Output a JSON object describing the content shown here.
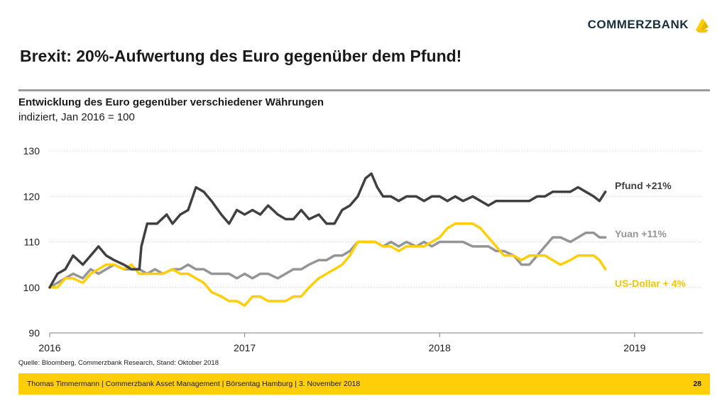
{
  "brand": {
    "name": "COMMERZBANK",
    "logo_color": "#fecf09"
  },
  "slide": {
    "title": "Brexit: 20%-Aufwertung des Euro gegenüber dem Pfund!",
    "subtitle": "Entwicklung des Euro gegenüber verschiedener Währungen",
    "unit_note": "indiziert, Jan 2016 = 100",
    "source": "Quelle: Bloomberg, Commerzbank Research, Stand: Oktober 2018",
    "footer": "Thomas Timmermann | Commerzbank Asset Management | Börsentag Hamburg | 3. November 2018",
    "page_number": "28"
  },
  "chart_data": {
    "type": "line",
    "xlim": [
      2016.0,
      2019.35
    ],
    "ylim": [
      90,
      130
    ],
    "x_ticks": [
      "2016",
      "2017",
      "2018",
      "2019"
    ],
    "y_ticks": [
      "90",
      "100",
      "110",
      "120",
      "130"
    ],
    "grid": "horizontal",
    "legend": "inline labels right of line ends",
    "series": [
      {
        "name": "Pfund +21%",
        "color": "#404040",
        "points": [
          [
            2016.0,
            100
          ],
          [
            2016.04,
            103
          ],
          [
            2016.08,
            104
          ],
          [
            2016.12,
            107
          ],
          [
            2016.17,
            105
          ],
          [
            2016.21,
            107
          ],
          [
            2016.25,
            109
          ],
          [
            2016.29,
            107
          ],
          [
            2016.33,
            106
          ],
          [
            2016.38,
            105
          ],
          [
            2016.42,
            104
          ],
          [
            2016.46,
            104
          ],
          [
            2016.47,
            109
          ],
          [
            2016.5,
            114
          ],
          [
            2016.55,
            114
          ],
          [
            2016.6,
            116
          ],
          [
            2016.63,
            114
          ],
          [
            2016.67,
            116
          ],
          [
            2016.71,
            117
          ],
          [
            2016.75,
            122
          ],
          [
            2016.79,
            121
          ],
          [
            2016.83,
            119
          ],
          [
            2016.88,
            116
          ],
          [
            2016.92,
            114
          ],
          [
            2016.96,
            117
          ],
          [
            2017.0,
            116
          ],
          [
            2017.04,
            117
          ],
          [
            2017.08,
            116
          ],
          [
            2017.12,
            118
          ],
          [
            2017.17,
            116
          ],
          [
            2017.21,
            115
          ],
          [
            2017.25,
            115
          ],
          [
            2017.29,
            117
          ],
          [
            2017.33,
            115
          ],
          [
            2017.38,
            116
          ],
          [
            2017.42,
            114
          ],
          [
            2017.46,
            114
          ],
          [
            2017.5,
            117
          ],
          [
            2017.54,
            118
          ],
          [
            2017.58,
            120
          ],
          [
            2017.62,
            124
          ],
          [
            2017.65,
            125
          ],
          [
            2017.68,
            122
          ],
          [
            2017.71,
            120
          ],
          [
            2017.75,
            120
          ],
          [
            2017.79,
            119
          ],
          [
            2017.83,
            120
          ],
          [
            2017.88,
            120
          ],
          [
            2017.92,
            119
          ],
          [
            2017.96,
            120
          ],
          [
            2018.0,
            120
          ],
          [
            2018.04,
            119
          ],
          [
            2018.08,
            120
          ],
          [
            2018.12,
            119
          ],
          [
            2018.17,
            120
          ],
          [
            2018.21,
            119
          ],
          [
            2018.25,
            118
          ],
          [
            2018.29,
            119
          ],
          [
            2018.33,
            119
          ],
          [
            2018.38,
            119
          ],
          [
            2018.42,
            119
          ],
          [
            2018.46,
            119
          ],
          [
            2018.5,
            120
          ],
          [
            2018.54,
            120
          ],
          [
            2018.58,
            121
          ],
          [
            2018.62,
            121
          ],
          [
            2018.67,
            121
          ],
          [
            2018.71,
            122
          ],
          [
            2018.75,
            121
          ],
          [
            2018.79,
            120
          ],
          [
            2018.82,
            119
          ],
          [
            2018.85,
            121
          ]
        ]
      },
      {
        "name": "Yuan +11%",
        "color": "#959595",
        "points": [
          [
            2016.0,
            100
          ],
          [
            2016.04,
            101
          ],
          [
            2016.08,
            102
          ],
          [
            2016.12,
            103
          ],
          [
            2016.17,
            102
          ],
          [
            2016.21,
            104
          ],
          [
            2016.25,
            103
          ],
          [
            2016.29,
            104
          ],
          [
            2016.33,
            105
          ],
          [
            2016.38,
            104
          ],
          [
            2016.42,
            104
          ],
          [
            2016.46,
            104
          ],
          [
            2016.5,
            103
          ],
          [
            2016.54,
            104
          ],
          [
            2016.58,
            103
          ],
          [
            2016.63,
            104
          ],
          [
            2016.67,
            104
          ],
          [
            2016.71,
            105
          ],
          [
            2016.75,
            104
          ],
          [
            2016.79,
            104
          ],
          [
            2016.83,
            103
          ],
          [
            2016.88,
            103
          ],
          [
            2016.92,
            103
          ],
          [
            2016.96,
            102
          ],
          [
            2017.0,
            103
          ],
          [
            2017.04,
            102
          ],
          [
            2017.08,
            103
          ],
          [
            2017.12,
            103
          ],
          [
            2017.17,
            102
          ],
          [
            2017.21,
            103
          ],
          [
            2017.25,
            104
          ],
          [
            2017.29,
            104
          ],
          [
            2017.33,
            105
          ],
          [
            2017.38,
            106
          ],
          [
            2017.42,
            106
          ],
          [
            2017.46,
            107
          ],
          [
            2017.5,
            107
          ],
          [
            2017.54,
            108
          ],
          [
            2017.58,
            110
          ],
          [
            2017.62,
            110
          ],
          [
            2017.67,
            110
          ],
          [
            2017.71,
            109
          ],
          [
            2017.75,
            110
          ],
          [
            2017.79,
            109
          ],
          [
            2017.83,
            110
          ],
          [
            2017.88,
            109
          ],
          [
            2017.92,
            110
          ],
          [
            2017.96,
            109
          ],
          [
            2018.0,
            110
          ],
          [
            2018.04,
            110
          ],
          [
            2018.08,
            110
          ],
          [
            2018.12,
            110
          ],
          [
            2018.17,
            109
          ],
          [
            2018.21,
            109
          ],
          [
            2018.25,
            109
          ],
          [
            2018.29,
            108
          ],
          [
            2018.33,
            108
          ],
          [
            2018.38,
            107
          ],
          [
            2018.42,
            105
          ],
          [
            2018.46,
            105
          ],
          [
            2018.5,
            107
          ],
          [
            2018.54,
            109
          ],
          [
            2018.58,
            111
          ],
          [
            2018.62,
            111
          ],
          [
            2018.67,
            110
          ],
          [
            2018.71,
            111
          ],
          [
            2018.75,
            112
          ],
          [
            2018.79,
            112
          ],
          [
            2018.82,
            111
          ],
          [
            2018.85,
            111
          ]
        ]
      },
      {
        "name": "US-Dollar + 4%",
        "color": "#fecf09",
        "points": [
          [
            2016.0,
            100
          ],
          [
            2016.04,
            100
          ],
          [
            2016.08,
            102
          ],
          [
            2016.12,
            102
          ],
          [
            2016.17,
            101
          ],
          [
            2016.21,
            103
          ],
          [
            2016.25,
            104
          ],
          [
            2016.29,
            105
          ],
          [
            2016.33,
            105
          ],
          [
            2016.38,
            104
          ],
          [
            2016.42,
            105
          ],
          [
            2016.46,
            103
          ],
          [
            2016.5,
            103
          ],
          [
            2016.54,
            103
          ],
          [
            2016.58,
            103
          ],
          [
            2016.63,
            104
          ],
          [
            2016.67,
            103
          ],
          [
            2016.71,
            103
          ],
          [
            2016.75,
            102
          ],
          [
            2016.79,
            101
          ],
          [
            2016.83,
            99
          ],
          [
            2016.88,
            98
          ],
          [
            2016.92,
            97
          ],
          [
            2016.96,
            97
          ],
          [
            2017.0,
            96
          ],
          [
            2017.04,
            98
          ],
          [
            2017.08,
            98
          ],
          [
            2017.12,
            97
          ],
          [
            2017.17,
            97
          ],
          [
            2017.21,
            97
          ],
          [
            2017.25,
            98
          ],
          [
            2017.29,
            98
          ],
          [
            2017.33,
            100
          ],
          [
            2017.38,
            102
          ],
          [
            2017.42,
            103
          ],
          [
            2017.46,
            104
          ],
          [
            2017.5,
            105
          ],
          [
            2017.54,
            107
          ],
          [
            2017.58,
            110
          ],
          [
            2017.62,
            110
          ],
          [
            2017.67,
            110
          ],
          [
            2017.71,
            109
          ],
          [
            2017.75,
            109
          ],
          [
            2017.79,
            108
          ],
          [
            2017.83,
            109
          ],
          [
            2017.88,
            109
          ],
          [
            2017.92,
            109
          ],
          [
            2017.96,
            110
          ],
          [
            2018.0,
            111
          ],
          [
            2018.04,
            113
          ],
          [
            2018.08,
            114
          ],
          [
            2018.12,
            114
          ],
          [
            2018.17,
            114
          ],
          [
            2018.21,
            113
          ],
          [
            2018.25,
            111
          ],
          [
            2018.29,
            109
          ],
          [
            2018.33,
            107
          ],
          [
            2018.38,
            107
          ],
          [
            2018.42,
            106
          ],
          [
            2018.46,
            107
          ],
          [
            2018.5,
            107
          ],
          [
            2018.54,
            107
          ],
          [
            2018.58,
            106
          ],
          [
            2018.62,
            105
          ],
          [
            2018.67,
            106
          ],
          [
            2018.71,
            107
          ],
          [
            2018.75,
            107
          ],
          [
            2018.79,
            107
          ],
          [
            2018.82,
            106
          ],
          [
            2018.85,
            104
          ]
        ]
      }
    ]
  }
}
